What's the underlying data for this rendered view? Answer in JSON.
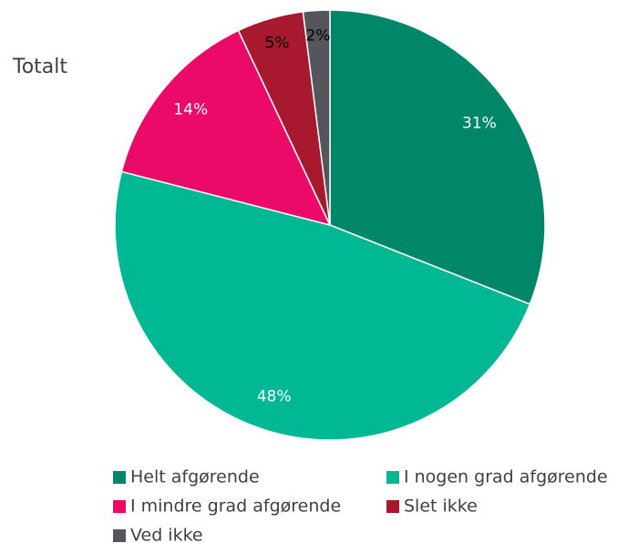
{
  "chart_data": {
    "type": "pie",
    "title": "Totalt",
    "categories": [
      "Helt afgørende",
      "I nogen grad afgørende",
      "I mindre grad afgørende",
      "Slet ikke",
      "Ved ikke"
    ],
    "values": [
      31,
      48,
      14,
      5,
      2
    ],
    "value_labels": [
      "31%",
      "48%",
      "14%",
      "5%",
      "2%"
    ],
    "colors": [
      "#00876a",
      "#00b894",
      "#ec0a69",
      "#a8182f",
      "#55565b"
    ],
    "label_colors": [
      "#ffffff",
      "#ffffff",
      "#ffffff",
      "#000000",
      "#000000"
    ],
    "legend": "bottom"
  }
}
